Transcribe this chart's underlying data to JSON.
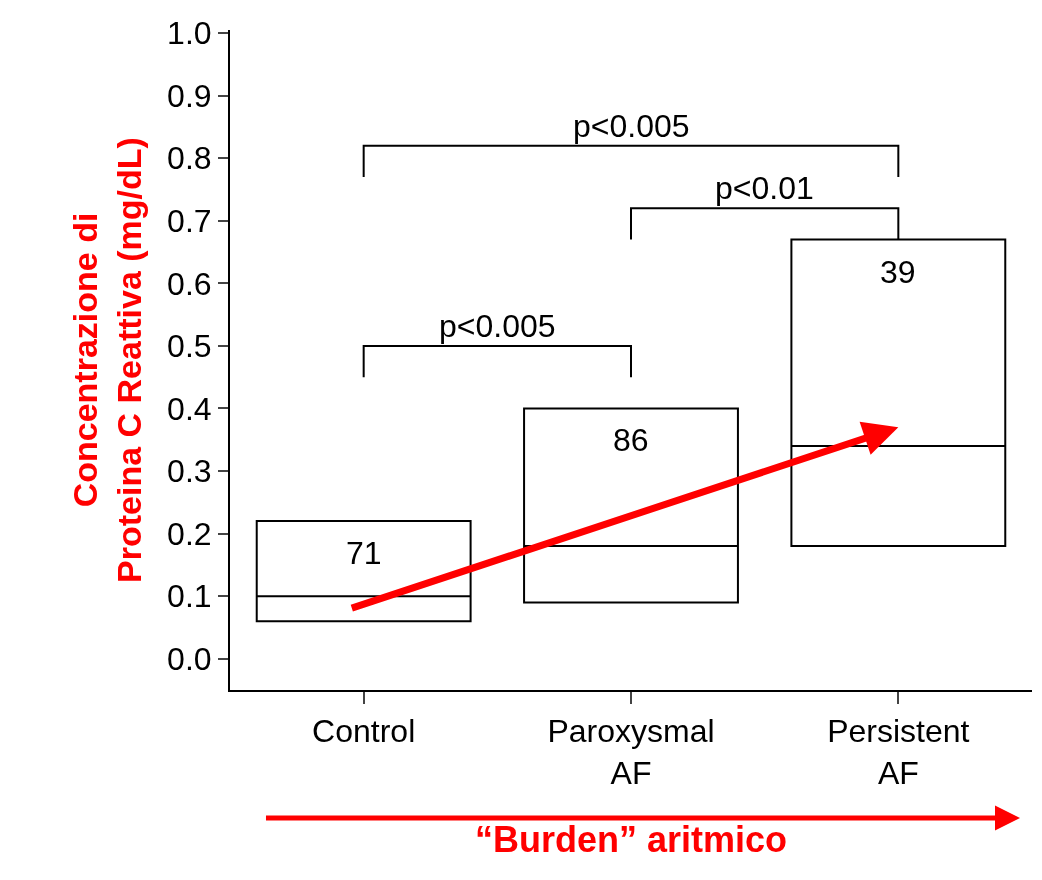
{
  "chart_data": {
    "type": "box",
    "ylabel": "Concentrazione di\nProteina C Reattiva (mg/dL)",
    "xlabel": "“Burden” aritmico",
    "categories": [
      "Control",
      "Paroxysmal\nAF",
      "Persistent\nAF"
    ],
    "series": [
      {
        "color": "#000000",
        "boxes": [
          {
            "low": 0.06,
            "q1": 0.06,
            "median": 0.1,
            "q3": 0.22,
            "high": 0.22
          },
          {
            "low": 0.09,
            "q1": 0.09,
            "median": 0.18,
            "q3": 0.4,
            "high": 0.4
          },
          {
            "low": 0.18,
            "q1": 0.18,
            "median": 0.34,
            "q3": 0.67,
            "high": 0.67
          }
        ]
      }
    ],
    "ylim": [
      -0.05,
      1.005
    ],
    "yticks": [
      {
        "value": 0,
        "label": "0.0"
      },
      0.1,
      0.2,
      0.3,
      0.4,
      0.5,
      0.6,
      0.7,
      0.8,
      0.9,
      {
        "value": 1,
        "label": "1.0"
      }
    ],
    "annotations": [
      "71",
      "86",
      "39",
      "p<0.005",
      "p<0.01",
      "p<0.005"
    ]
  }
}
